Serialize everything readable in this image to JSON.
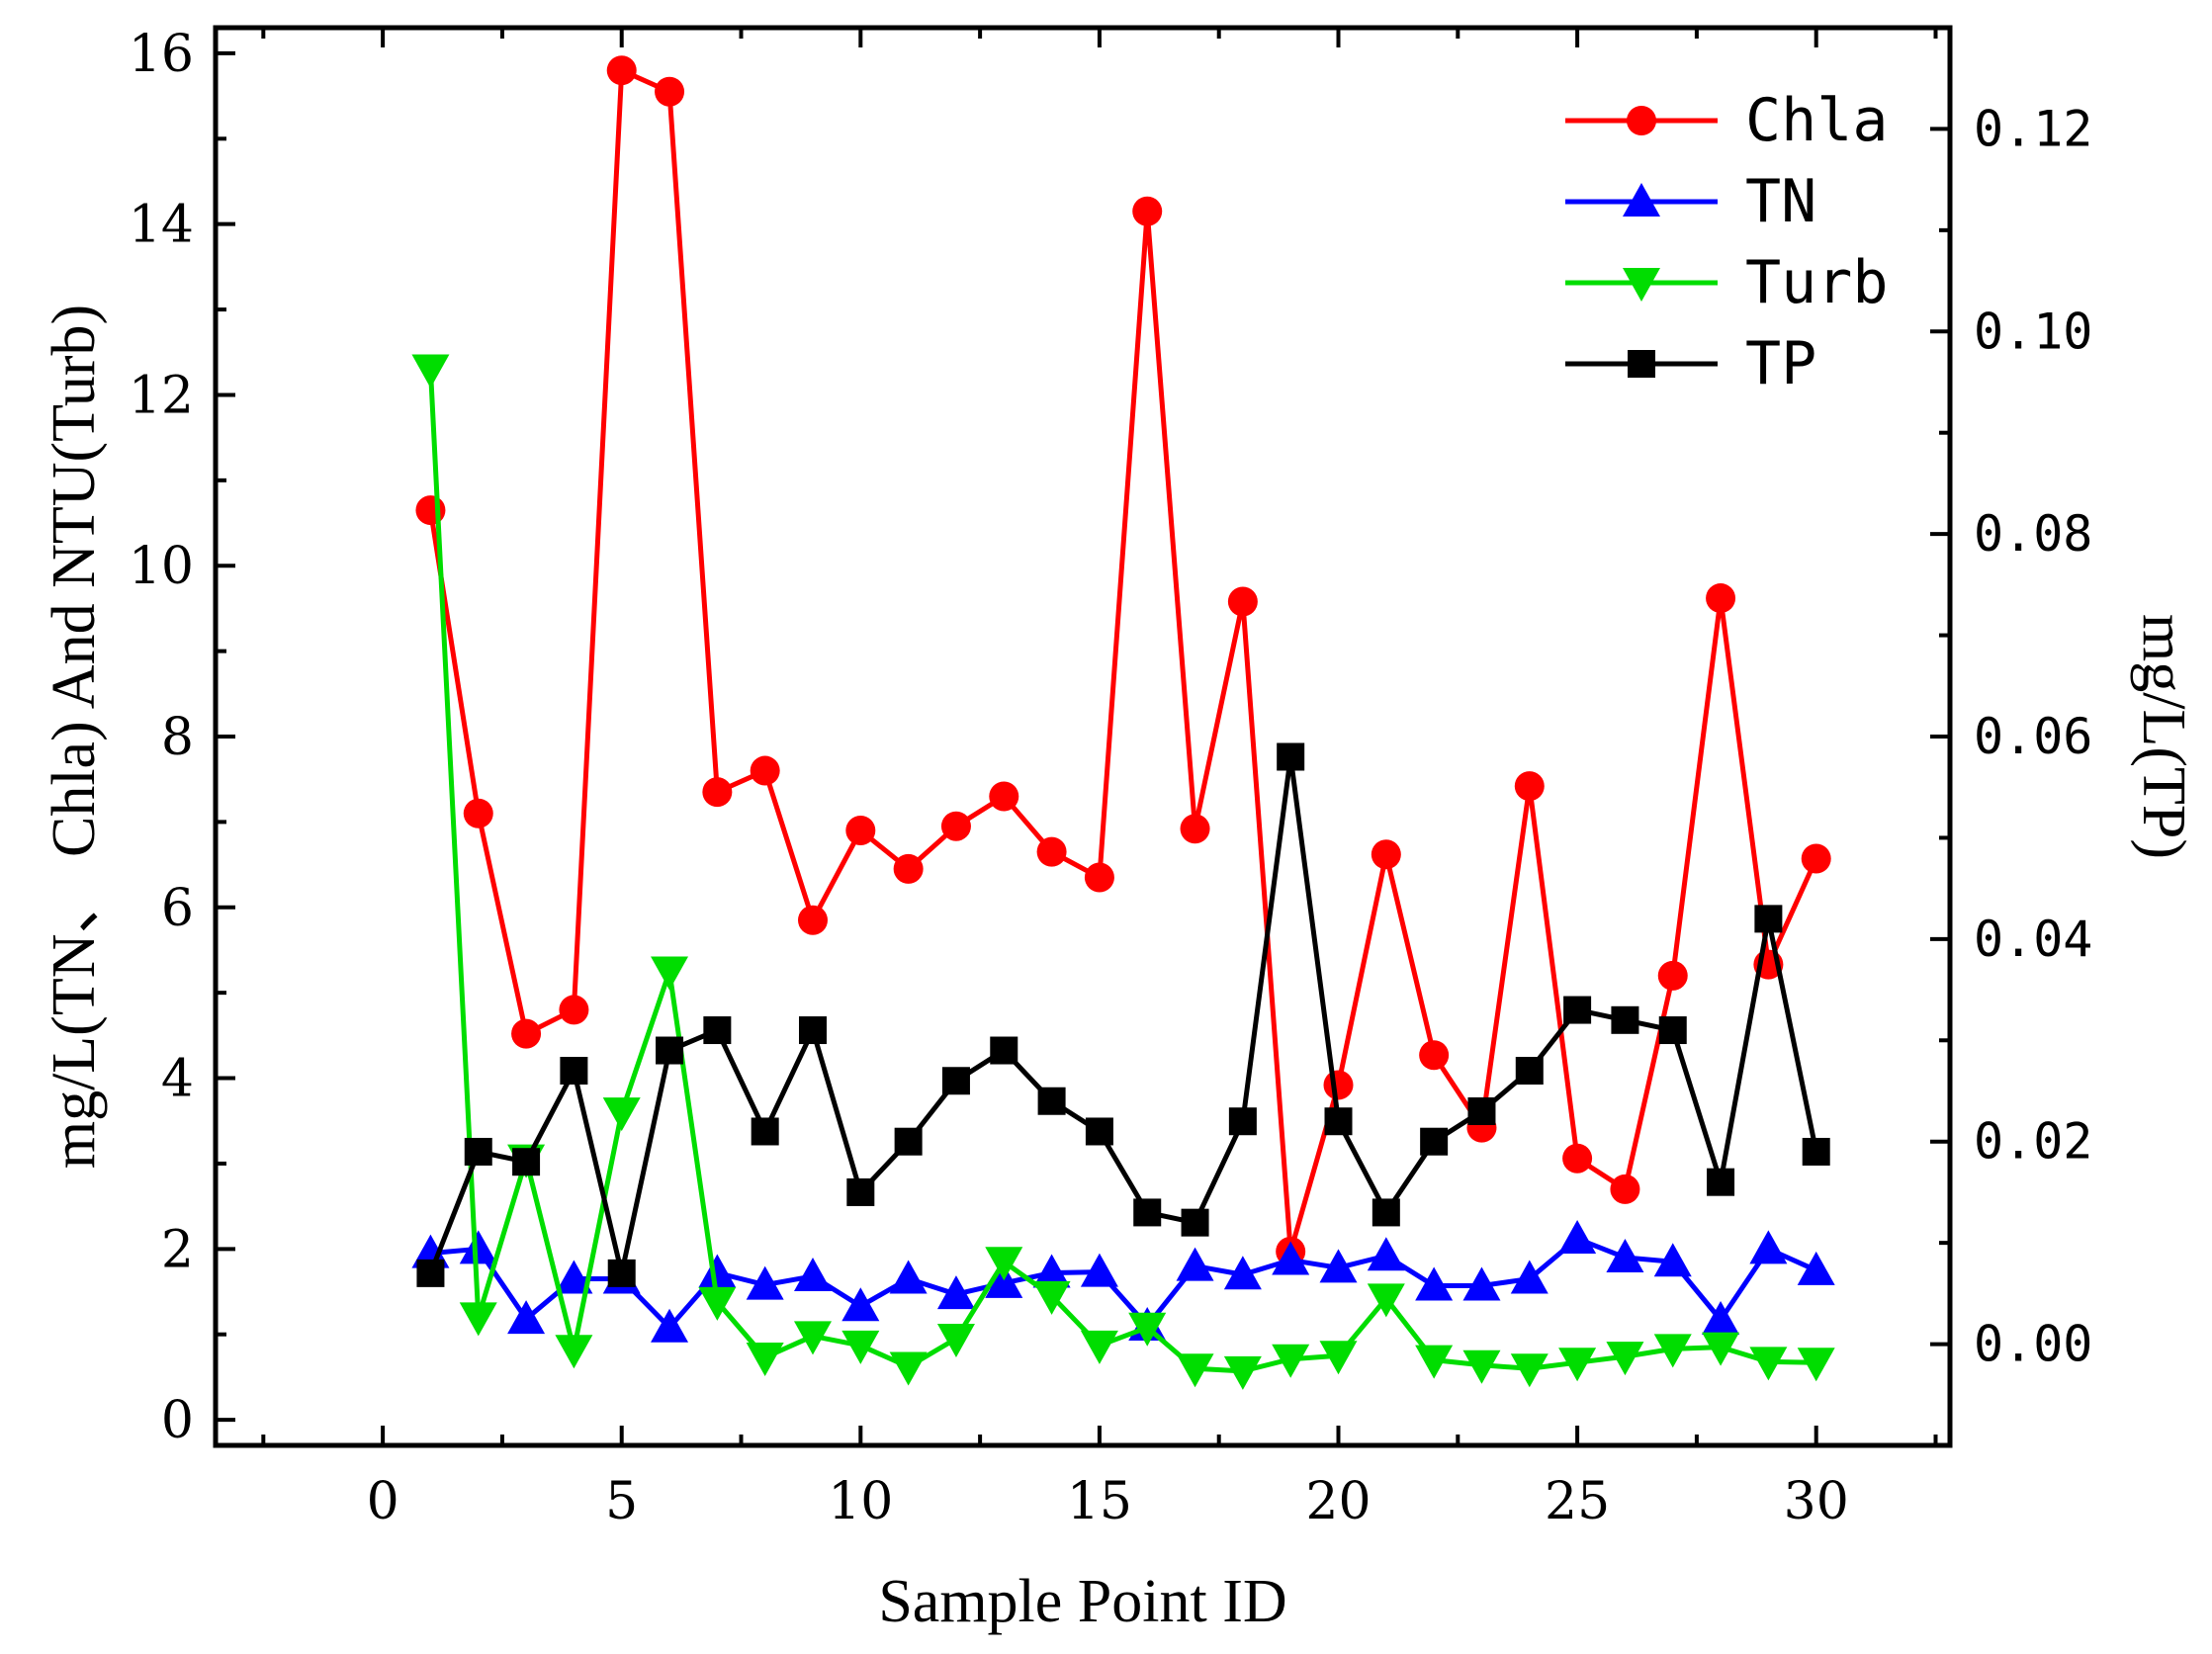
{
  "chart_data": {
    "type": "line",
    "xlabel": "Sample Point ID",
    "ylabel": "mg/L(TN、 Chla) And NTU(Turb)",
    "y2label": "mg/L(TP)",
    "xlim": [
      -3.5,
      32.8
    ],
    "ylim": [
      -0.3,
      16.3
    ],
    "y2lim": [
      -0.01,
      0.13
    ],
    "x_ticks": [
      0,
      5,
      10,
      15,
      20,
      25,
      30
    ],
    "x_tick_labels": [
      "0",
      "5",
      "10",
      "15",
      "20",
      "25",
      "30"
    ],
    "y_ticks": [
      0,
      2,
      4,
      6,
      8,
      10,
      12,
      14,
      16
    ],
    "y_tick_labels": [
      "0",
      "2",
      "4",
      "6",
      "8",
      "10",
      "12",
      "14",
      "16"
    ],
    "y2_ticks": [
      0.0,
      0.02,
      0.04,
      0.06,
      0.08,
      0.1,
      0.12
    ],
    "y2_tick_labels": [
      "0.00",
      "0.02",
      "0.04",
      "0.06",
      "0.08",
      "0.10",
      "0.12"
    ],
    "x": [
      1,
      2,
      3,
      4,
      5,
      6,
      7,
      8,
      9,
      10,
      11,
      12,
      13,
      14,
      15,
      16,
      17,
      18,
      19,
      20,
      21,
      22,
      23,
      24,
      25,
      26,
      27,
      28,
      29,
      30
    ],
    "legend_position": "top-right",
    "series": [
      {
        "name": "Chla",
        "axis": "left",
        "color": "#ff0000",
        "marker": "circle",
        "values": [
          10.65,
          7.1,
          4.52,
          4.8,
          15.8,
          15.55,
          7.35,
          7.6,
          5.85,
          6.9,
          6.45,
          6.95,
          7.3,
          6.65,
          6.35,
          14.15,
          6.92,
          9.58,
          1.97,
          3.92,
          6.62,
          4.27,
          3.42,
          7.42,
          3.06,
          2.7,
          5.2,
          9.62,
          5.33,
          6.57
        ]
      },
      {
        "name": "TN",
        "axis": "left",
        "color": "#0000ff",
        "marker": "triangle-up",
        "values": [
          1.95,
          2.0,
          1.18,
          1.65,
          1.65,
          1.08,
          1.72,
          1.58,
          1.68,
          1.33,
          1.65,
          1.47,
          1.6,
          1.72,
          1.73,
          1.1,
          1.8,
          1.7,
          1.87,
          1.78,
          1.92,
          1.57,
          1.57,
          1.65,
          2.12,
          1.9,
          1.85,
          1.17,
          2.0,
          1.75
        ]
      },
      {
        "name": "Turb",
        "axis": "left",
        "color": "#00dd00",
        "marker": "triangle-down",
        "values": [
          12.3,
          1.2,
          3.05,
          0.82,
          3.6,
          5.25,
          1.38,
          0.73,
          0.98,
          0.87,
          0.62,
          0.95,
          1.85,
          1.45,
          0.87,
          1.08,
          0.6,
          0.57,
          0.71,
          0.75,
          1.42,
          0.7,
          0.64,
          0.6,
          0.67,
          0.74,
          0.83,
          0.85,
          0.68,
          0.67
        ]
      },
      {
        "name": "TP",
        "axis": "right",
        "color": "#000000",
        "marker": "square",
        "values": [
          0.007,
          0.019,
          0.018,
          0.027,
          0.007,
          0.029,
          0.031,
          0.021,
          0.031,
          0.015,
          0.02,
          0.026,
          0.029,
          0.024,
          0.021,
          0.013,
          0.012,
          0.022,
          0.058,
          0.022,
          0.013,
          0.02,
          0.023,
          0.027,
          0.033,
          0.032,
          0.031,
          0.016,
          0.042,
          0.019
        ]
      }
    ]
  }
}
